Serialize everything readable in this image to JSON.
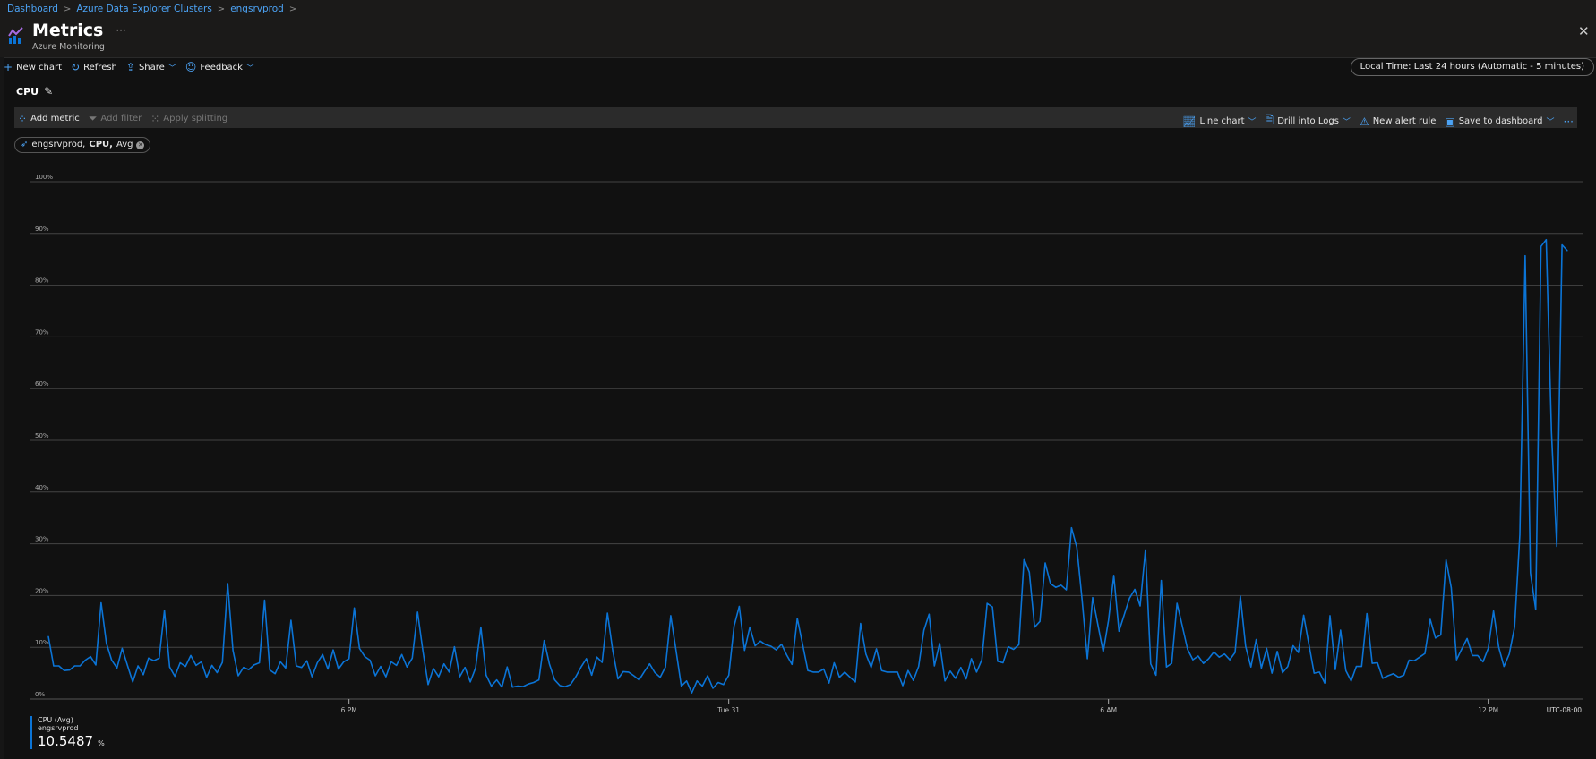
{
  "breadcrumb": [
    "Dashboard",
    "Azure Data Explorer Clusters",
    "engsrvprod"
  ],
  "header": {
    "title": "Metrics",
    "subtitle": "Azure Monitoring",
    "more": "···",
    "close": "✕"
  },
  "toolbar": {
    "new_chart": "New chart",
    "refresh": "Refresh",
    "share": "Share",
    "feedback": "Feedback",
    "time_range": "Local Time: Last 24 hours (Automatic - 5 minutes)"
  },
  "chart_title": "CPU",
  "chart_toolbar": {
    "add_metric": "Add metric",
    "add_filter": "Add filter",
    "apply_splitting": "Apply splitting",
    "line_chart": "Line chart",
    "drill_logs": "Drill into Logs",
    "new_alert": "New alert rule",
    "save_dashboard": "Save to dashboard",
    "more": "···"
  },
  "metric_pill": {
    "resource": "engsrvprod,",
    "metric": "CPU,",
    "aggregation": "Avg"
  },
  "legend": {
    "name": "CPU (Avg)",
    "resource": "engsrvprod",
    "value": "10.5487",
    "unit": "%"
  },
  "colors": {
    "series": "#0b74d6",
    "link": "#4ca3f5",
    "grid": "#444444"
  },
  "chart_data": {
    "type": "line",
    "ylim": [
      0,
      100
    ],
    "y_ticks": [
      "0%",
      "10%",
      "20%",
      "30%",
      "40%",
      "50%",
      "60%",
      "70%",
      "80%",
      "90%",
      "100%"
    ],
    "x_ticks": [
      {
        "label": "6 PM",
        "index": 57
      },
      {
        "label": "Tue 31",
        "index": 129
      },
      {
        "label": "6 AM",
        "index": 201
      },
      {
        "label": "12 PM",
        "index": 273
      }
    ],
    "timezone": "UTC-08:00",
    "interval": "5 minutes",
    "grid": true,
    "series": [
      {
        "name": "CPU (Avg)",
        "values": [
          12.1,
          6.4,
          6.4,
          5.5,
          5.6,
          6.4,
          6.4,
          7.5,
          8.2,
          6.6,
          18.6,
          10.8,
          7.5,
          6.0,
          9.8,
          6.5,
          3.3,
          6.4,
          4.7,
          7.9,
          7.4,
          7.9,
          17.1,
          6.2,
          4.4,
          7.0,
          6.3,
          8.4,
          6.5,
          7.2,
          4.2,
          6.5,
          5.1,
          7.1,
          22.3,
          9.4,
          4.5,
          6.1,
          5.7,
          6.6,
          7.0,
          19.1,
          5.6,
          4.9,
          7.2,
          6.0,
          15.2,
          6.4,
          6.1,
          7.4,
          4.3,
          7.0,
          8.6,
          5.8,
          9.5,
          5.8,
          7.2,
          7.8,
          17.6,
          9.8,
          8.2,
          7.5,
          4.5,
          6.3,
          4.3,
          7.2,
          6.5,
          8.6,
          6.2,
          7.9,
          16.8,
          9.4,
          2.8,
          5.9,
          4.3,
          6.8,
          5.2,
          10.1,
          4.3,
          6.1,
          3.3,
          6.0,
          13.9,
          4.6,
          2.5,
          3.7,
          2.3,
          6.2,
          2.3,
          2.5,
          2.4,
          2.9,
          3.2,
          3.7,
          11.3,
          6.8,
          3.7,
          2.6,
          2.4,
          2.8,
          4.3,
          6.2,
          7.8,
          4.6,
          8.1,
          7.1,
          16.6,
          9.4,
          3.9,
          5.3,
          5.2,
          4.5,
          3.7,
          5.3,
          6.8,
          5.1,
          4.2,
          6.2,
          16.1,
          9.4,
          2.5,
          3.5,
          1.2,
          3.5,
          2.5,
          4.5,
          2.1,
          3.2,
          2.8,
          4.6,
          14.1,
          17.9,
          9.4,
          13.9,
          10.3,
          11.2,
          10.5,
          10.2,
          9.5,
          10.6,
          8.5,
          6.7,
          15.6,
          10.6,
          5.5,
          5.2,
          5.2,
          5.8,
          3.1,
          7.0,
          4.2,
          5.2,
          4.2,
          3.3,
          14.6,
          8.7,
          6.1,
          9.7,
          5.5,
          5.2,
          5.2,
          5.2,
          2.6,
          5.5,
          3.6,
          6.3,
          13.3,
          16.4,
          6.4,
          10.8,
          3.5,
          5.4,
          4.0,
          6.1,
          3.9,
          7.8,
          5.2,
          7.6,
          18.5,
          17.8,
          7.3,
          7.0,
          10.1,
          9.6,
          10.5,
          27.1,
          24.5,
          13.9,
          15.0,
          26.3,
          22.3,
          21.6,
          22.0,
          21.1,
          33.1,
          29.3,
          19.2,
          7.8,
          19.6,
          14.3,
          9.1,
          15.2,
          23.9,
          13.1,
          16.3,
          19.5,
          21.2,
          18.0,
          28.8,
          6.8,
          4.6,
          22.9,
          6.2,
          6.9,
          18.5,
          14.1,
          9.6,
          7.6,
          8.3,
          6.9,
          7.8,
          9.1,
          8.1,
          8.7,
          7.6,
          9.0,
          19.9,
          10.2,
          6.2,
          11.5,
          6.0,
          9.8,
          5.0,
          9.2,
          5.1,
          6.3,
          10.3,
          9.0,
          16.2,
          10.6,
          5.0,
          5.2,
          3.1,
          16.1,
          5.7,
          13.3,
          5.5,
          3.5,
          6.3,
          6.3,
          16.5,
          6.9,
          7.0,
          4.0,
          4.5,
          4.9,
          4.2,
          4.6,
          7.5,
          7.4,
          8.1,
          8.8,
          15.4,
          11.8,
          12.4,
          26.9,
          21.5,
          7.6,
          9.7,
          11.7,
          8.4,
          8.4,
          7.2,
          9.8,
          17.0,
          10.0,
          6.3,
          8.7,
          13.9,
          31.8,
          85.7,
          24.4,
          17.3,
          87.5,
          88.8,
          51.5,
          29.5,
          87.8,
          86.7
        ]
      }
    ]
  }
}
